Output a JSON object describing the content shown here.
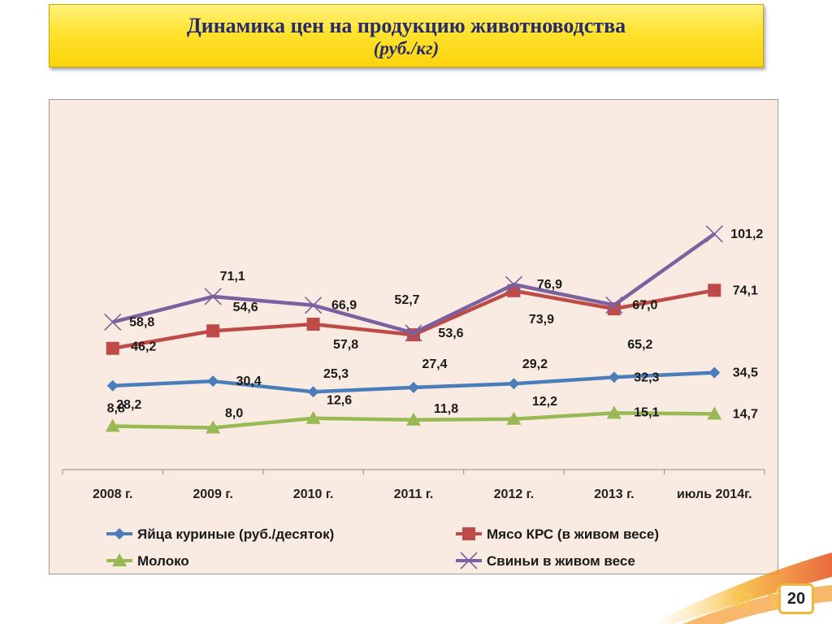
{
  "slide": {
    "title": "Динамика цен на продукцию животноводства",
    "subtitle": "(руб./кг)",
    "page_number": "20"
  },
  "chart_data": {
    "type": "line",
    "title": "",
    "xlabel": "",
    "ylabel": "",
    "ylim": [
      0,
      110
    ],
    "grid": false,
    "legend_position": "bottom",
    "categories": [
      "2008 г.",
      "2009 г.",
      "2010 г.",
      "2011 г.",
      "2012 г.",
      "2013 г.",
      "июль 2014г."
    ],
    "series": [
      {
        "name": "Яйца куриные  (руб./десяток)",
        "color": "#4a7ebb",
        "marker": "diamond",
        "values": [
          28.2,
          30.4,
          25.3,
          27.4,
          29.2,
          32.3,
          34.5
        ],
        "labels": [
          "28,2",
          "30,4",
          "25,3",
          "27,4",
          "29,2",
          "32,3",
          "34,5"
        ]
      },
      {
        "name": "Мясо КРС (в живом весе)",
        "color": "#be4b48",
        "marker": "square",
        "values": [
          46.2,
          54.6,
          57.8,
          52.7,
          73.9,
          65.2,
          74.1
        ],
        "labels": [
          "46,2",
          "54,6",
          "57,8",
          "52,7",
          "73,9",
          "65,2",
          "74,1"
        ]
      },
      {
        "name": "Молоко",
        "color": "#98b954",
        "marker": "triangle",
        "values": [
          8.8,
          8.0,
          12.6,
          11.8,
          12.2,
          15.1,
          14.7
        ],
        "labels": [
          "8,8",
          "8,0",
          "12,6",
          "11,8",
          "12,2",
          "15,1",
          "14,7"
        ]
      },
      {
        "name": "Свиньи  в живом весе",
        "color": "#7d60a0",
        "marker": "x",
        "values": [
          58.8,
          71.1,
          66.9,
          53.6,
          76.9,
          67.0,
          101.2
        ],
        "labels": [
          "58,8",
          "71,1",
          "66,9",
          "53,6",
          "76,9",
          "67,0",
          "101,2"
        ]
      }
    ]
  }
}
